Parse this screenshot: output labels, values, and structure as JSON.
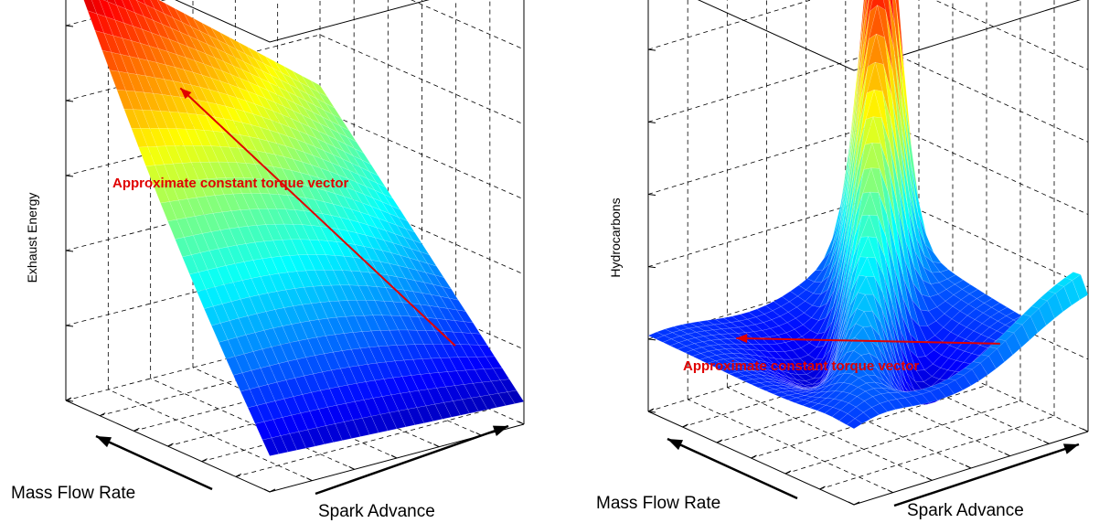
{
  "chart_data": [
    {
      "type": "surface",
      "title": "",
      "xlabel": "Spark Advance",
      "ylabel": "Mass Flow Rate",
      "zlabel": "Exhaust Energy",
      "annotation": "Approximate constant torque vector",
      "grid": true,
      "colormap": "jet",
      "surface_shape": "smooth plane rising toward low spark advance and high mass flow rate",
      "corner_heights": {
        "near": 0.08,
        "right": 0.05,
        "back": 0.55,
        "left": 1.0
      },
      "annotation_arrow": {
        "from": [
          0.85,
          0.15
        ],
        "to": [
          0.25,
          0.75
        ]
      }
    },
    {
      "type": "surface",
      "title": "",
      "xlabel": "Spark Advance",
      "ylabel": "Mass Flow Rate",
      "zlabel": "Hydrocarbons",
      "annotation": "Approximate constant torque vector",
      "grid": true,
      "colormap": "jet",
      "surface_shape": "low valley with a sharp central ridge peaking near the back edge",
      "peak_height": 1.0,
      "base_height": 0.15,
      "annotation_arrow": {
        "from": [
          0.8,
          0.2
        ],
        "to": [
          0.2,
          0.8
        ]
      }
    }
  ],
  "colors": {
    "annotation": "#e00000",
    "axis": "#000000",
    "grid": "#000000"
  }
}
